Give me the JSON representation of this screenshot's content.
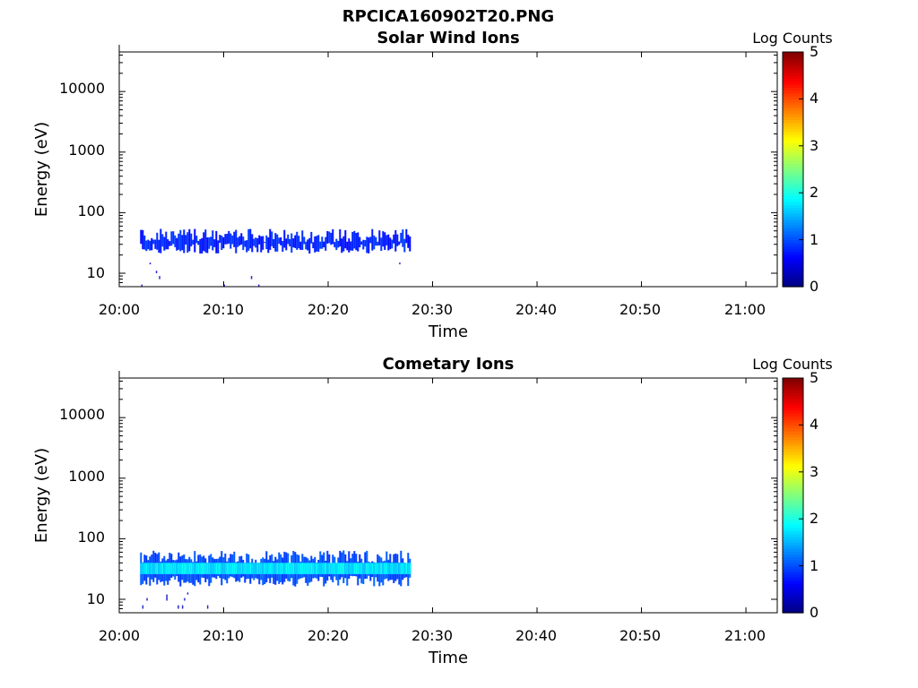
{
  "figure": {
    "title": "RPCICA160902T20.PNG"
  },
  "colors": {
    "axis": "#000000",
    "background": "#ffffff",
    "colormap": "jet",
    "colormap_stops": [
      "#00007f",
      "#0000ff",
      "#007fff",
      "#00ffff",
      "#7fff7f",
      "#ffff00",
      "#ff7f00",
      "#ff0000",
      "#7f0000"
    ]
  },
  "chart_data": [
    {
      "type": "heatmap",
      "title": "Solar Wind Ions",
      "xlabel": "Time",
      "ylabel": "Energy (eV)",
      "xlim": [
        "20:00",
        "21:03"
      ],
      "ylim": [
        6,
        45000
      ],
      "yscale": "log",
      "x_ticks": [
        "20:00",
        "20:10",
        "20:20",
        "20:30",
        "20:40",
        "20:50",
        "21:00"
      ],
      "y_ticks": [
        "10",
        "100",
        "1000",
        "10000"
      ],
      "colorbar": {
        "label": "Log Counts",
        "range": [
          0,
          5
        ],
        "ticks": [
          "0",
          "1",
          "2",
          "3",
          "4",
          "5"
        ]
      },
      "band": {
        "time_start": "20:02",
        "time_end": "20:27.8",
        "energy_low": 26,
        "energy_high": 42,
        "core_low": 29,
        "core_high": 37,
        "log_counts": 0.8,
        "core_log_counts": 0.8
      },
      "scatter": [
        {
          "time": "20:02.9",
          "energy_low": 14,
          "energy_high": 15
        },
        {
          "time": "20:03.5",
          "energy_low": 10,
          "energy_high": 11
        },
        {
          "time": "20:03.8",
          "energy_low": 8,
          "energy_high": 9
        },
        {
          "time": "20:02.1",
          "energy_low": 6,
          "energy_high": 6.5
        },
        {
          "time": "20:10.0",
          "energy_low": 6,
          "energy_high": 6.5
        },
        {
          "time": "20:12.6",
          "energy_low": 8,
          "energy_high": 9
        },
        {
          "time": "20:13.3",
          "energy_low": 6,
          "energy_high": 6.5
        },
        {
          "time": "20:26.8",
          "energy_low": 14,
          "energy_high": 15
        }
      ]
    },
    {
      "type": "heatmap",
      "title": "Cometary Ions",
      "xlabel": "Time",
      "ylabel": "Energy (eV)",
      "xlim": [
        "20:00",
        "21:03"
      ],
      "ylim": [
        6,
        45000
      ],
      "yscale": "log",
      "x_ticks": [
        "20:00",
        "20:10",
        "20:20",
        "20:30",
        "20:40",
        "20:50",
        "21:00"
      ],
      "y_ticks": [
        "10",
        "100",
        "1000",
        "10000"
      ],
      "colorbar": {
        "label": "Log Counts",
        "range": [
          0,
          5
        ],
        "ticks": [
          "0",
          "1",
          "2",
          "3",
          "4",
          "5"
        ]
      },
      "band": {
        "time_start": "20:02",
        "time_end": "20:27.8",
        "energy_low": 20,
        "energy_high": 50,
        "core_low": 26,
        "core_high": 40,
        "log_counts": 1.0,
        "core_log_counts": 1.8
      },
      "scatter": [
        {
          "time": "20:02.2",
          "energy_low": 7,
          "energy_high": 8
        },
        {
          "time": "20:02.6",
          "energy_low": 9.5,
          "energy_high": 10.5
        },
        {
          "time": "20:04.5",
          "energy_low": 9.5,
          "energy_high": 12
        },
        {
          "time": "20:05.6",
          "energy_low": 7,
          "energy_high": 8
        },
        {
          "time": "20:06.0",
          "energy_low": 7,
          "energy_high": 8
        },
        {
          "time": "20:06.2",
          "energy_low": 9.5,
          "energy_high": 10.5
        },
        {
          "time": "20:06.5",
          "energy_low": 12,
          "energy_high": 13
        },
        {
          "time": "20:08.4",
          "energy_low": 7,
          "energy_high": 8
        }
      ]
    }
  ]
}
